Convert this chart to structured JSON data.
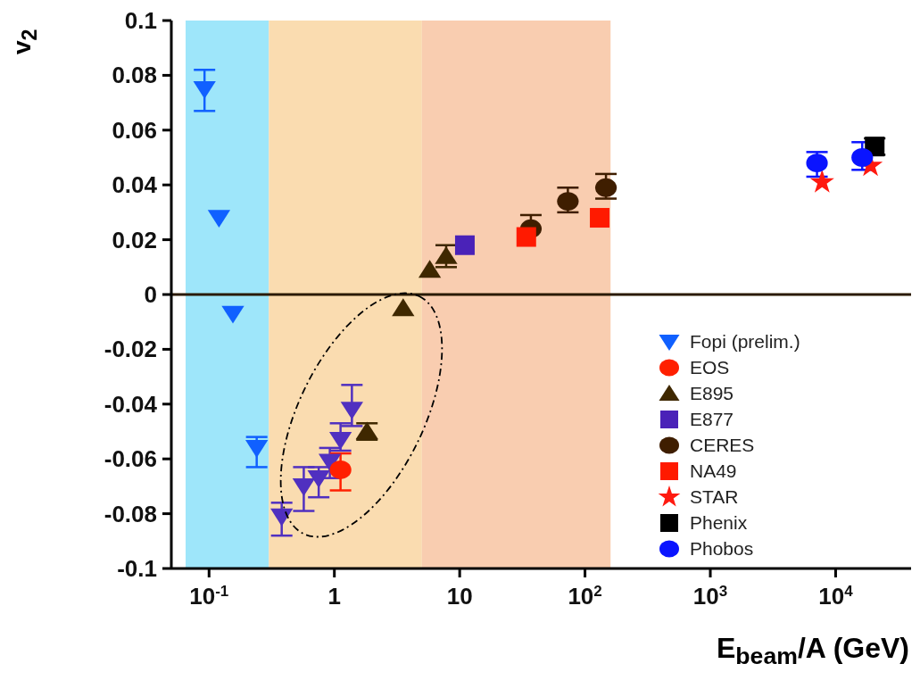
{
  "chart_data": {
    "type": "scatter",
    "xlabel": "E$_{beam}$/A (GeV)",
    "ylabel": "v$_{2}$",
    "log": "x",
    "xlim": [
      0.05,
      40000
    ],
    "xticks": [
      {
        "value": 0.1,
        "label": "10$^{-1}$"
      },
      1,
      10,
      {
        "value": 100,
        "label": "10$^{2}$"
      },
      {
        "value": 1000,
        "label": "10$^{3}$"
      },
      {
        "value": 10000,
        "label": "10$^{4}$"
      }
    ],
    "ylim": [
      -0.1,
      0.1
    ],
    "yticks": [
      -0.1,
      -0.08,
      -0.06,
      -0.04,
      -0.02,
      0,
      0.02,
      0.04,
      0.06,
      0.08,
      0.1
    ],
    "legend": "bottom right",
    "ref_lines": [
      {
        "axis": "y",
        "value": 0,
        "color": "#2a1a00"
      }
    ],
    "bands": [
      {
        "axis": "x",
        "from": 0.065,
        "to": 0.3,
        "color": "#9ee6fa"
      },
      {
        "axis": "x",
        "from": 0.3,
        "to": 5,
        "color": "#fadcb0"
      },
      {
        "axis": "x",
        "from": 5,
        "to": 160,
        "color": "#f9cdb0"
      }
    ],
    "series": [
      {
        "name": "Fopi (prelim.)",
        "color": "#1060ff",
        "marker": "triangle-down",
        "x": [
          0.092,
          0.12,
          0.155,
          0.24
        ],
        "values": [
          0.075,
          0.028,
          -0.007,
          -0.056
        ],
        "errors": [
          [
            0.067,
            0.082
          ],
          null,
          null,
          [
            -0.063,
            -0.052
          ]
        ]
      },
      {
        "color": "#5030c0",
        "marker": "triangle-down",
        "x": [
          0.38,
          0.57,
          0.75,
          0.92,
          1.12,
          1.38
        ],
        "values": [
          -0.081,
          -0.07,
          -0.067,
          -0.061,
          -0.053,
          -0.042
        ],
        "errors": [
          [
            -0.088,
            -0.076
          ],
          [
            -0.079,
            -0.063
          ],
          [
            -0.074,
            -0.063
          ],
          [
            -0.067,
            -0.056
          ],
          [
            -0.057,
            -0.047
          ],
          [
            -0.048,
            -0.033
          ]
        ]
      },
      {
        "name": "EOS",
        "color": "#ff2000",
        "marker": "circle",
        "x": [
          1.12
        ],
        "values": [
          -0.064
        ],
        "errors": [
          [
            -0.0715,
            -0.058
          ]
        ]
      },
      {
        "name": "E895",
        "color": "#3f2800",
        "marker": "triangle",
        "x": [
          1.82,
          3.54,
          5.77,
          7.8
        ],
        "values": [
          -0.05,
          -0.005,
          0.009,
          0.014
        ],
        "errors": [
          [
            -0.053,
            -0.047
          ],
          null,
          null,
          [
            0.01,
            0.018
          ]
        ]
      },
      {
        "name": "E877",
        "color": "#4a22b8",
        "marker": "square",
        "x": [
          11
        ],
        "values": [
          0.018
        ]
      },
      {
        "name": "CERES",
        "color": "#3f1e00",
        "marker": "circle",
        "x": [
          37,
          73,
          147
        ],
        "values": [
          0.024,
          0.034,
          0.039
        ],
        "errors": [
          [
            0.024,
            0.029
          ],
          [
            0.03,
            0.039
          ],
          [
            0.035,
            0.044
          ]
        ]
      },
      {
        "name": "NA49",
        "color": "#ff1a00",
        "marker": "square",
        "x": [
          34,
          131
        ],
        "values": [
          0.021,
          0.028
        ]
      },
      {
        "name": "STAR",
        "color": "#ff1a10",
        "marker": "star",
        "x": [
          7800,
          19000
        ],
        "values": [
          0.041,
          0.047
        ]
      },
      {
        "name": "Phenix",
        "color": "#000000",
        "marker": "square",
        "x": [
          20500
        ],
        "values": [
          0.054
        ],
        "errors": [
          [
            0.051,
            0.057
          ]
        ]
      },
      {
        "name": "Phobos",
        "color": "#0a14ff",
        "marker": "circle",
        "x": [
          7100,
          16300
        ],
        "values": [
          0.048,
          0.05
        ],
        "errors": [
          [
            0.043,
            0.052
          ],
          [
            0.0455,
            0.0556
          ]
        ]
      }
    ]
  }
}
